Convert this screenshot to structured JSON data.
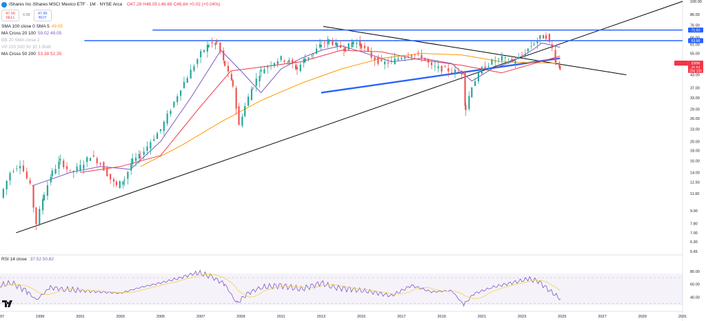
{
  "header": {
    "symbol_title": "iShares Inc iShares MSCI Mexico ETF · 1M · NYSE Arca",
    "ohlc": "O47.28 H48.05 L46.68 C46.84 +0.02 (+0.04%)",
    "sell_price": "47.00",
    "sell_label": "SELL",
    "spread": "0.95",
    "buy_price": "47.95",
    "buy_label": "BUY"
  },
  "indicators": [
    {
      "label": "SMA 100 close 0 SMA 5",
      "values": "49.05",
      "color": "#ff9800"
    },
    {
      "label": "MA Cross 20 100",
      "values": "59.02  49.05",
      "color": "#7e57c2"
    },
    {
      "label": "BB 20 SMA close 2",
      "values": "",
      "color": "#b2b5be"
    },
    {
      "label": "VP 220 500 50 30 1 Both",
      "values": "",
      "color": "#b2b5be"
    },
    {
      "label": "MA Cross 50 200",
      "values": "53.38  52.35",
      "color": "#f23645"
    }
  ],
  "rsi": {
    "label": "RSI 14 close",
    "values": "37.52  50.82",
    "color": "#7e57c2"
  },
  "price_axis_ticks": [
    "100.00",
    "86.00",
    "76.00",
    "66.00",
    "61.00",
    "55.00",
    "49.00",
    "43.00",
    "37.00",
    "33.00",
    "29.00",
    "26.00",
    "23.00",
    "20.00",
    "18.00",
    "16.00",
    "14.00",
    "12.50",
    "11.00",
    "9.00",
    "7.80",
    "7.00",
    "6.30",
    "5.65"
  ],
  "rsi_axis_ticks": [
    "80.00",
    "60.00",
    "40.00"
  ],
  "time_axis_labels": [
    "1997",
    "1999",
    "2001",
    "2003",
    "2005",
    "2007",
    "2009",
    "2011",
    "2013",
    "2015",
    "2017",
    "2019",
    "2021",
    "2023",
    "2025",
    "2027",
    "2029",
    "2031"
  ],
  "price_badges": [
    {
      "text": "71.93",
      "color": "#2962ff"
    },
    {
      "text": "63.68",
      "color": "#2962ff"
    },
    {
      "text": "EWW",
      "color": "#f23645"
    },
    {
      "text": "46.84",
      "color": "#f23645"
    },
    {
      "text": "25d 10h",
      "color": "#f23645"
    }
  ],
  "chart_data": {
    "type": "candlestick",
    "title": "iShares Inc iShares MSCI Mexico ETF · 1M · NYSE Arca",
    "y_scale": "log",
    "ylim": [
      5.65,
      100
    ],
    "x_range": [
      1997,
      2031
    ],
    "series": [
      {
        "name": "EWW",
        "kind": "price",
        "color_up": "#26a69a",
        "color_down": "#ef5350",
        "x": [
          1997.0,
          1997.5,
          1998.0,
          1998.5,
          1998.8,
          1999.2,
          1999.6,
          2000.0,
          2000.5,
          2001.0,
          2001.5,
          2002.0,
          2002.5,
          2002.8,
          2003.2,
          2003.6,
          2004.0,
          2004.5,
          2005.0,
          2005.5,
          2006.0,
          2006.5,
          2007.0,
          2007.4,
          2007.8,
          2008.2,
          2008.6,
          2008.9,
          2009.2,
          2009.6,
          2010.0,
          2010.5,
          2011.0,
          2011.4,
          2011.8,
          2012.2,
          2012.6,
          2013.0,
          2013.4,
          2013.8,
          2014.2,
          2014.6,
          2015.0,
          2015.5,
          2016.0,
          2016.5,
          2017.0,
          2017.5,
          2018.0,
          2018.5,
          2019.0,
          2019.5,
          2020.0,
          2020.2,
          2020.5,
          2021.0,
          2021.5,
          2022.0,
          2022.5,
          2023.0,
          2023.3,
          2023.6,
          2023.9,
          2024.2,
          2024.5,
          2024.7,
          2024.9
        ],
        "values": [
          10.5,
          14,
          15.5,
          12,
          7.8,
          11,
          14,
          16,
          14,
          15,
          17,
          15.5,
          13,
          12,
          13,
          16,
          17,
          20,
          23,
          29,
          37,
          45,
          55,
          61,
          62,
          48,
          38,
          24,
          30,
          38,
          45,
          49,
          52,
          50,
          46,
          52,
          55,
          61,
          64,
          60,
          58,
          63,
          60,
          53,
          49,
          50,
          53,
          55,
          53,
          47,
          46,
          45,
          44,
          29,
          38,
          46,
          50,
          52,
          50,
          53,
          58,
          62,
          66,
          67,
          58,
          50,
          46.84
        ]
      },
      {
        "name": "SMA 100",
        "kind": "line",
        "color": "#ff9800",
        "x": [
          2004.0,
          2006.0,
          2008.0,
          2010.0,
          2012.0,
          2014.0,
          2016.0,
          2018.0,
          2020.0,
          2022.0,
          2024.9
        ],
        "values": [
          15,
          19,
          25,
          32,
          39,
          46,
          52,
          55,
          54,
          50,
          49.05
        ]
      },
      {
        "name": "MA 20",
        "kind": "line",
        "color": "#7e57c2",
        "x": [
          1998.6,
          2000.5,
          2002.0,
          2003.5,
          2005.0,
          2006.5,
          2008.0,
          2009.0,
          2010.0,
          2011.0,
          2012.0,
          2013.0,
          2014.0,
          2015.0,
          2016.5,
          2018.0,
          2019.5,
          2020.5,
          2021.5,
          2022.5,
          2023.5,
          2024.0,
          2024.9
        ],
        "values": [
          12,
          14,
          15,
          14.5,
          20,
          33,
          57,
          45,
          35,
          46,
          52,
          57,
          60,
          56,
          50,
          52,
          49,
          40,
          46,
          50,
          57,
          62,
          59.02
        ]
      },
      {
        "name": "MA 50",
        "kind": "line",
        "color": "#f23645",
        "x": [
          2001.0,
          2003.0,
          2005.0,
          2007.0,
          2008.5,
          2010.0,
          2012.0,
          2014.0,
          2016.0,
          2018.0,
          2020.0,
          2022.0,
          2024.9
        ],
        "values": [
          14,
          15,
          17,
          30,
          45,
          47,
          50,
          57,
          56,
          51,
          48,
          44,
          53.38
        ]
      }
    ],
    "trendlines": [
      {
        "color": "#000000",
        "x": [
          1997.8,
          2031.0
        ],
        "values": [
          7.0,
          100
        ]
      },
      {
        "color": "#000000",
        "x": [
          2013.1,
          2028.2
        ],
        "values": [
          75,
          43
        ]
      },
      {
        "color": "#2962ff",
        "x": [
          2013.0,
          2024.9
        ],
        "values": [
          35,
          52
        ]
      },
      {
        "color": "#2962ff",
        "x": [
          2004.6,
          2031.0
        ],
        "values": [
          71.93,
          71.93
        ]
      },
      {
        "color": "#2962ff",
        "x": [
          2001.2,
          2031.0
        ],
        "values": [
          63.68,
          63.68
        ]
      }
    ],
    "rsi": {
      "ylim": [
        20,
        100
      ],
      "overbought": 70,
      "oversold": 30,
      "x": [
        1997.0,
        1997.6,
        1998.4,
        1998.8,
        1999.5,
        2000.2,
        2001.0,
        2002.0,
        2003.0,
        2004.0,
        2005.0,
        2006.0,
        2006.8,
        2007.5,
        2008.2,
        2008.8,
        2009.3,
        2010.0,
        2011.0,
        2012.0,
        2013.0,
        2013.6,
        2014.5,
        2015.5,
        2016.5,
        2017.5,
        2018.5,
        2019.5,
        2020.1,
        2020.6,
        2021.5,
        2022.5,
        2023.3,
        2023.8,
        2024.3,
        2024.9
      ],
      "values": [
        58,
        62,
        48,
        35,
        55,
        52,
        50,
        48,
        46,
        55,
        62,
        70,
        78,
        72,
        60,
        30,
        45,
        55,
        58,
        52,
        62,
        55,
        52,
        48,
        42,
        58,
        48,
        50,
        28,
        45,
        55,
        62,
        68,
        65,
        52,
        37.52
      ]
    }
  }
}
